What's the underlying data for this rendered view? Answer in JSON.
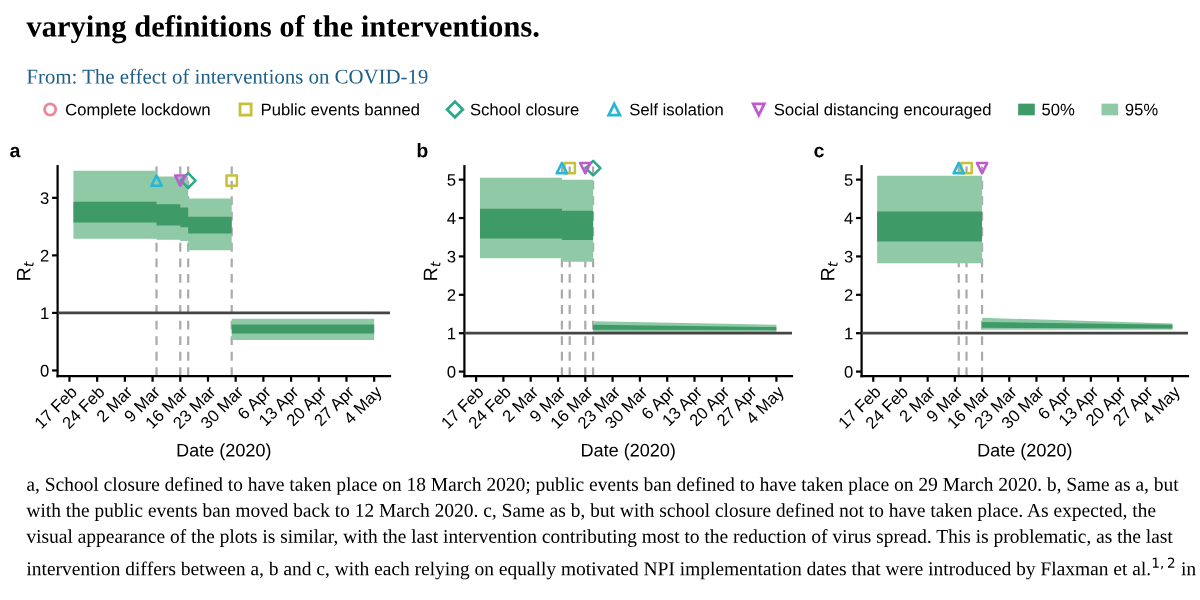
{
  "chart_data": [
    {
      "type": "area",
      "title": "varying definitions of the interventions.",
      "subtitle": "From: The effect of interventions on COVID-19",
      "xlabel": "Date (2020)",
      "ylabel": "R$_{t}$",
      "legend": "top",
      "annotations": [
        "a",
        "a, School closure defined to have taken place on 18 March 2020; public events ban defined to have taken place on 29 March 2020. b, Same as a, but with the public events ban moved back to 12 March 2020. c, Same as b, but with school closure defined not to have taken place. As expected, the visual appearance of the plots is similar, with the last intervention contributing most to the reduction of virus spread. This is problematic, as the last intervention differs between a, b and c, with each relying on equally motivated NPI implementation dates that were introduced by Flaxman et al.$^{1,2}$ in"
      ],
      "xlim": [
        "2020-02-14",
        "2020-05-08"
      ],
      "ylim": [
        -0.1,
        3.55
      ],
      "yticks": [
        0,
        1,
        2,
        3
      ],
      "xticks": [
        {
          "value": "2020-02-17",
          "label": "17 Feb"
        },
        {
          "value": "2020-02-24",
          "label": "24 Feb"
        },
        {
          "value": "2020-03-02",
          "label": "2 Mar"
        },
        {
          "value": "2020-03-09",
          "label": "9 Mar"
        },
        {
          "value": "2020-03-16",
          "label": "16 Mar"
        },
        {
          "value": "2020-03-23",
          "label": "23 Mar"
        },
        {
          "value": "2020-03-30",
          "label": "30 Mar"
        },
        {
          "value": "2020-04-06",
          "label": "6 Apr"
        },
        {
          "value": "2020-04-13",
          "label": "13 Apr"
        },
        {
          "value": "2020-04-20",
          "label": "20 Apr"
        },
        {
          "value": "2020-04-27",
          "label": "27 Apr"
        },
        {
          "value": "2020-05-04",
          "label": "4 May"
        }
      ],
      "ref_lines": [
        {
          "axis": "y",
          "value": 1,
          "color": "#444444",
          "line_style": "solid"
        },
        {
          "axis": "x",
          "value": "2020-03-10",
          "color": "#aaaaaa",
          "line_style": "dashed"
        },
        {
          "axis": "x",
          "value": "2020-03-16",
          "color": "#aaaaaa",
          "line_style": "dashed"
        },
        {
          "axis": "x",
          "value": "2020-03-18",
          "color": "#aaaaaa",
          "line_style": "dashed"
        },
        {
          "axis": "x",
          "value": "2020-03-29",
          "color": "#aaaaaa",
          "line_style": "dashed"
        }
      ],
      "series": [
        {
          "type": "scatter",
          "name": "Complete lockdown",
          "color": "#e8899c",
          "marker": "circle"
        },
        {
          "type": "scatter",
          "name": "Public events banned",
          "color": "#c6c03c",
          "marker": "square",
          "x": [
            "2020-03-29"
          ],
          "values": [
            3.3
          ]
        },
        {
          "type": "scatter",
          "name": "School closure",
          "color": "#2aa88a",
          "marker": "diamond",
          "x": [
            "2020-03-18"
          ],
          "values": [
            3.3
          ]
        },
        {
          "type": "scatter",
          "name": "Self isolation",
          "color": "#29b6d6",
          "marker": "triangle",
          "x": [
            "2020-03-10"
          ],
          "values": [
            3.3
          ]
        },
        {
          "type": "scatter",
          "name": "Social distancing encouraged",
          "color": "#c05ad0",
          "marker": "triangle_down",
          "x": [
            "2020-03-16"
          ],
          "values": [
            3.3
          ]
        },
        {
          "name": "50%",
          "color": "#3e9a66",
          "x": [
            "2020-02-18",
            "2020-03-10",
            "2020-03-10",
            "2020-03-16",
            "2020-03-16",
            "2020-03-18",
            "2020-03-18",
            "2020-03-29",
            "2020-03-29",
            "2020-05-04"
          ],
          "values": [
            null,
            null,
            null,
            null,
            null,
            null,
            null,
            null,
            null,
            null
          ],
          "upper": [
            2.93,
            2.93,
            2.89,
            2.89,
            2.83,
            2.83,
            2.67,
            2.67,
            0.8,
            0.8
          ],
          "lower": [
            2.57,
            2.57,
            2.52,
            2.52,
            2.49,
            2.49,
            2.38,
            2.38,
            0.64,
            0.64
          ]
        },
        {
          "name": "95%",
          "color": "#8fc9a6",
          "x": [
            "2020-02-18",
            "2020-03-10",
            "2020-03-10",
            "2020-03-16",
            "2020-03-16",
            "2020-03-18",
            "2020-03-18",
            "2020-03-29",
            "2020-03-29",
            "2020-05-04"
          ],
          "values": [
            null,
            null,
            null,
            null,
            null,
            null,
            null,
            null,
            null,
            null
          ],
          "upper": [
            3.47,
            3.47,
            3.37,
            3.37,
            3.37,
            3.37,
            2.99,
            2.99,
            0.9,
            0.9
          ],
          "lower": [
            2.29,
            2.29,
            2.27,
            2.27,
            2.25,
            2.25,
            2.09,
            2.09,
            0.53,
            0.53
          ]
        }
      ]
    },
    {
      "type": "area",
      "xlabel": "Date (2020)",
      "ylabel": "R$_{t}$",
      "annotations": [
        "b"
      ],
      "xlim": [
        "2020-02-14",
        "2020-05-08"
      ],
      "ylim": [
        -0.12,
        5.35
      ],
      "yticks": [
        0,
        1,
        2,
        3,
        4,
        5
      ],
      "xticks": [
        {
          "value": "2020-02-17",
          "label": "17 Feb"
        },
        {
          "value": "2020-02-24",
          "label": "24 Feb"
        },
        {
          "value": "2020-03-02",
          "label": "2 Mar"
        },
        {
          "value": "2020-03-09",
          "label": "9 Mar"
        },
        {
          "value": "2020-03-16",
          "label": "16 Mar"
        },
        {
          "value": "2020-03-23",
          "label": "23 Mar"
        },
        {
          "value": "2020-03-30",
          "label": "30 Mar"
        },
        {
          "value": "2020-04-06",
          "label": "6 Apr"
        },
        {
          "value": "2020-04-13",
          "label": "13 Apr"
        },
        {
          "value": "2020-04-20",
          "label": "20 Apr"
        },
        {
          "value": "2020-04-27",
          "label": "27 Apr"
        },
        {
          "value": "2020-05-04",
          "label": "4 May"
        }
      ],
      "ref_lines": [
        {
          "axis": "y",
          "value": 1,
          "color": "#444444",
          "line_style": "solid"
        },
        {
          "axis": "x",
          "value": "2020-03-10",
          "color": "#aaaaaa",
          "line_style": "dashed"
        },
        {
          "axis": "x",
          "value": "2020-03-12",
          "color": "#aaaaaa",
          "line_style": "dashed"
        },
        {
          "axis": "x",
          "value": "2020-03-16",
          "color": "#aaaaaa",
          "line_style": "dashed"
        },
        {
          "axis": "x",
          "value": "2020-03-18",
          "color": "#aaaaaa",
          "line_style": "dashed"
        }
      ],
      "series": [
        {
          "type": "scatter",
          "color": "#c6c03c",
          "marker": "square",
          "x": [
            "2020-03-12"
          ],
          "values": [
            5.3
          ]
        },
        {
          "type": "scatter",
          "color": "#2aa88a",
          "marker": "diamond",
          "x": [
            "2020-03-18"
          ],
          "values": [
            5.3
          ]
        },
        {
          "type": "scatter",
          "color": "#29b6d6",
          "marker": "triangle",
          "x": [
            "2020-03-10"
          ],
          "values": [
            5.3
          ]
        },
        {
          "type": "scatter",
          "color": "#c05ad0",
          "marker": "triangle_down",
          "x": [
            "2020-03-16"
          ],
          "values": [
            5.3
          ]
        },
        {
          "color": "#3e9a66",
          "x": [
            "2020-02-18",
            "2020-03-10",
            "2020-03-10",
            "2020-03-18",
            "2020-03-18",
            "2020-05-04"
          ],
          "values": [
            null,
            null,
            null,
            null,
            null,
            null
          ],
          "upper": [
            4.24,
            4.24,
            4.19,
            4.19,
            1.22,
            1.16
          ],
          "lower": [
            3.47,
            3.47,
            3.43,
            3.43,
            1.09,
            1.08
          ]
        },
        {
          "color": "#8fc9a6",
          "x": [
            "2020-02-18",
            "2020-03-10",
            "2020-03-10",
            "2020-03-18",
            "2020-03-18",
            "2020-05-04"
          ],
          "values": [
            null,
            null,
            null,
            null,
            null,
            null
          ],
          "upper": [
            5.05,
            5.05,
            5.0,
            5.0,
            1.31,
            1.22
          ],
          "lower": [
            2.95,
            2.95,
            2.86,
            2.86,
            1.02,
            1.02
          ]
        }
      ]
    },
    {
      "type": "area",
      "xlabel": "Date (2020)",
      "ylabel": "R$_{t}$",
      "annotations": [
        "c"
      ],
      "xlim": [
        "2020-02-14",
        "2020-05-08"
      ],
      "ylim": [
        -0.12,
        5.35
      ],
      "yticks": [
        0,
        1,
        2,
        3,
        4,
        5
      ],
      "xticks": [
        {
          "value": "2020-02-17",
          "label": "17 Feb"
        },
        {
          "value": "2020-02-24",
          "label": "24 Feb"
        },
        {
          "value": "2020-03-02",
          "label": "2 Mar"
        },
        {
          "value": "2020-03-09",
          "label": "9 Mar"
        },
        {
          "value": "2020-03-16",
          "label": "16 Mar"
        },
        {
          "value": "2020-03-23",
          "label": "23 Mar"
        },
        {
          "value": "2020-03-30",
          "label": "30 Mar"
        },
        {
          "value": "2020-04-06",
          "label": "6 Apr"
        },
        {
          "value": "2020-04-13",
          "label": "13 Apr"
        },
        {
          "value": "2020-04-20",
          "label": "20 Apr"
        },
        {
          "value": "2020-04-27",
          "label": "27 Apr"
        },
        {
          "value": "2020-05-04",
          "label": "4 May"
        }
      ],
      "ref_lines": [
        {
          "axis": "y",
          "value": 1,
          "color": "#444444",
          "line_style": "solid"
        },
        {
          "axis": "x",
          "value": "2020-03-10",
          "color": "#aaaaaa",
          "line_style": "dashed"
        },
        {
          "axis": "x",
          "value": "2020-03-12",
          "color": "#aaaaaa",
          "line_style": "dashed"
        },
        {
          "axis": "x",
          "value": "2020-03-16",
          "color": "#aaaaaa",
          "line_style": "dashed"
        }
      ],
      "series": [
        {
          "type": "scatter",
          "color": "#c6c03c",
          "marker": "square",
          "x": [
            "2020-03-12"
          ],
          "values": [
            5.3
          ]
        },
        {
          "type": "scatter",
          "color": "#29b6d6",
          "marker": "triangle",
          "x": [
            "2020-03-10"
          ],
          "values": [
            5.3
          ]
        },
        {
          "type": "scatter",
          "color": "#c05ad0",
          "marker": "triangle_down",
          "x": [
            "2020-03-16"
          ],
          "values": [
            5.3
          ]
        },
        {
          "color": "#3e9a66",
          "x": [
            "2020-02-18",
            "2020-03-16",
            "2020-03-16",
            "2020-05-04"
          ],
          "values": [
            null,
            null,
            null,
            null
          ],
          "upper": [
            4.17,
            4.17,
            1.29,
            1.22
          ],
          "lower": [
            3.39,
            3.39,
            1.14,
            1.12
          ]
        },
        {
          "color": "#8fc9a6",
          "x": [
            "2020-02-18",
            "2020-03-16",
            "2020-03-16",
            "2020-05-04"
          ],
          "values": [
            null,
            null,
            null,
            null
          ],
          "upper": [
            5.1,
            5.1,
            1.4,
            1.25
          ],
          "lower": [
            2.82,
            2.82,
            1.09,
            1.09
          ]
        }
      ]
    }
  ]
}
